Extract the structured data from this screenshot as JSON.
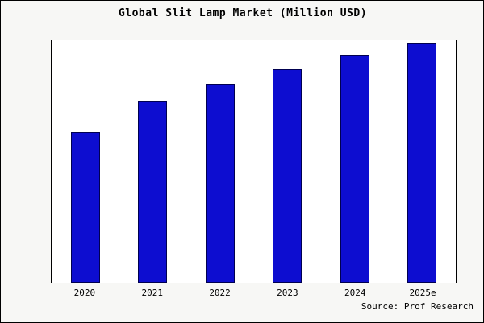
{
  "chart_data": {
    "type": "bar",
    "title": "Global Slit Lamp Market (Million USD)",
    "categories": [
      "2020",
      "2021",
      "2022",
      "2023",
      "2024",
      "2025e"
    ],
    "values": [
      62,
      75,
      82,
      88,
      94,
      99
    ],
    "values_note": "relative heights estimated from pixels; no y-axis tick labels shown",
    "xlabel": "",
    "ylabel": "",
    "ylim": [
      0,
      100
    ],
    "grid": false,
    "legend": null,
    "bar_color": "#0d0dd0",
    "bar_edge_color": "#000050",
    "plot_background": "#ffffff",
    "figure_background": "#f7f7f5",
    "source_text": "Source: Prof Research"
  }
}
